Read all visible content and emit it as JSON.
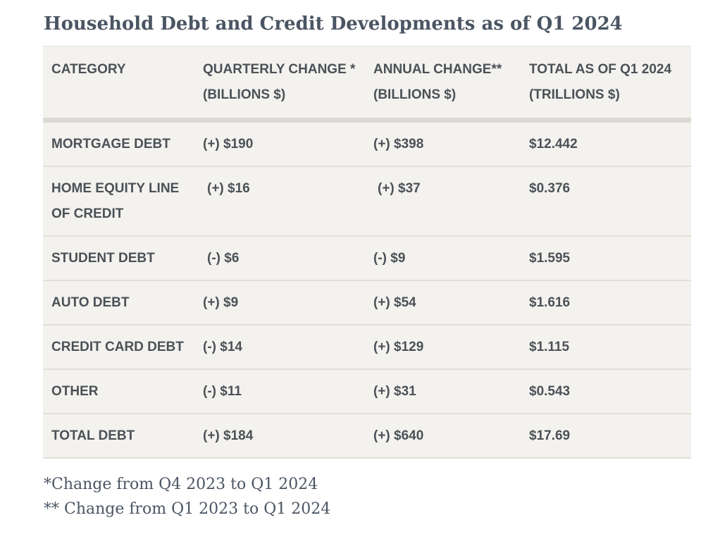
{
  "title": "Household Debt and Credit Developments as of Q1 2024",
  "table": {
    "headers": [
      "CATEGORY",
      "QUARTERLY CHANGE * (BILLIONS $)",
      "ANNUAL CHANGE** (BILLIONS $)",
      "TOTAL AS OF Q1 2024 (TRILLIONS $)"
    ],
    "rows": [
      [
        "MORTGAGE DEBT",
        "(+) $190",
        "(+) $398",
        "$12.442"
      ],
      [
        "HOME EQUITY LINE OF CREDIT",
        "(+) $16",
        "(+) $37",
        "$0.376"
      ],
      [
        "STUDENT DEBT",
        "(-) $6",
        "(-) $9",
        "$1.595"
      ],
      [
        "AUTO DEBT",
        "(+) $9",
        "(+) $54",
        "$1.616"
      ],
      [
        "CREDIT CARD DEBT",
        "(-) $14",
        "(+) $129",
        "$1.115"
      ],
      [
        "OTHER",
        "(-) $11",
        "(+) $31",
        "$0.543"
      ],
      [
        "TOTAL DEBT",
        "(+) $184",
        "(+) $640",
        "$17.69"
      ]
    ]
  },
  "footnotes": [
    "*Change from Q4 2023 to Q1 2024",
    "** Change from Q1 2023 to Q1 2024"
  ]
}
